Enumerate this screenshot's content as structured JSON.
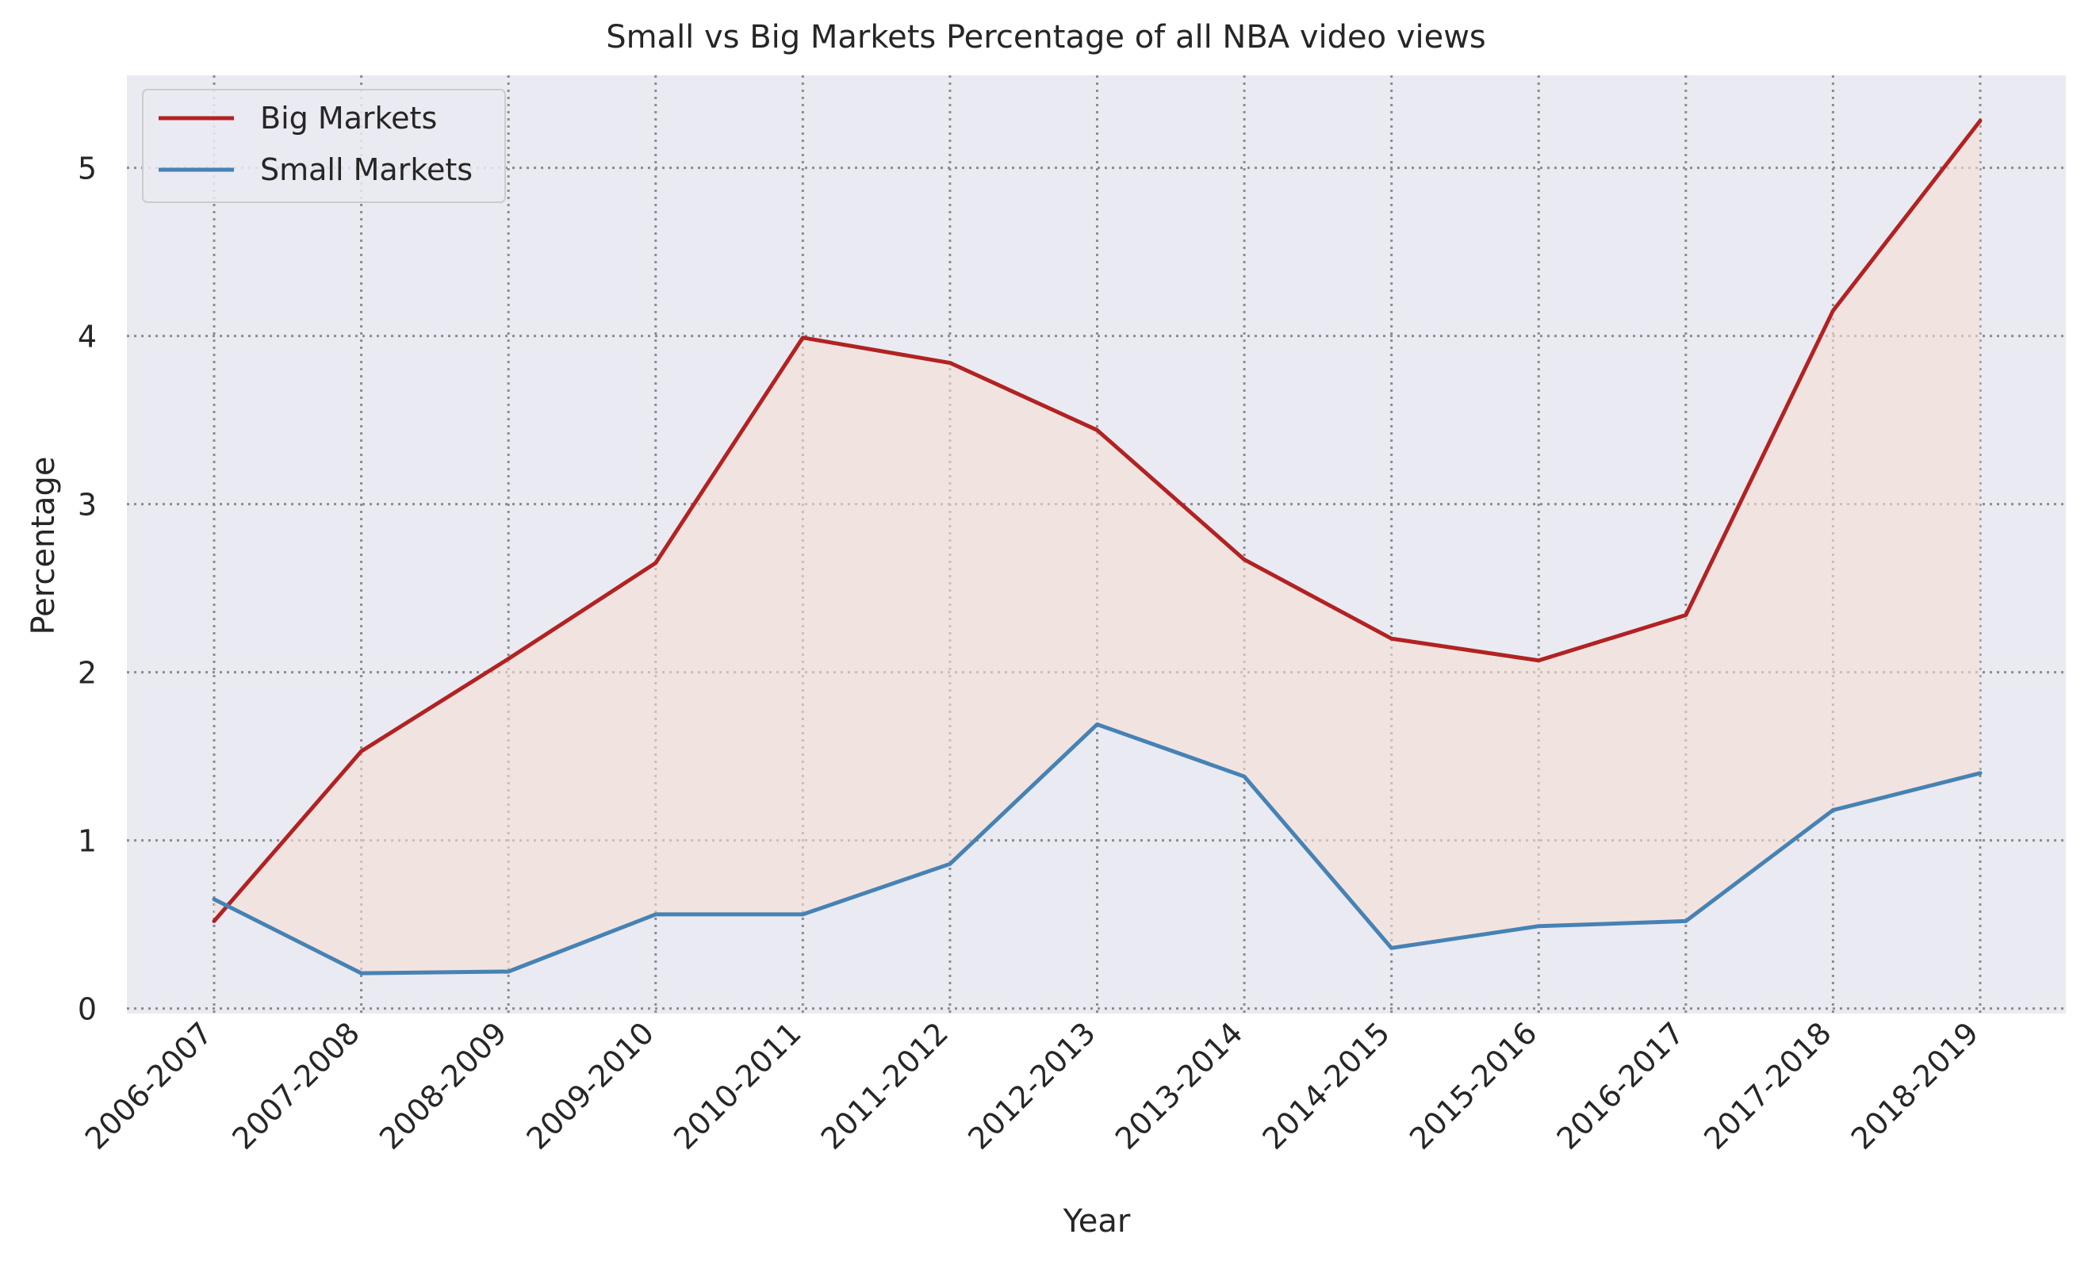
{
  "chart_data": {
    "type": "line",
    "title": "Small vs Big Markets Percentage of all NBA video views",
    "xlabel": "Year",
    "ylabel": "Percentage",
    "categories": [
      "2006-2007",
      "2007-2008",
      "2008-2009",
      "2009-2010",
      "2010-2011",
      "2011-2012",
      "2012-2013",
      "2013-2014",
      "2014-2015",
      "2015-2016",
      "2016-2017",
      "2017-2018",
      "2018-2019"
    ],
    "series": [
      {
        "name": "Big Markets",
        "color": "#b22222",
        "values": [
          0.52,
          1.53,
          2.08,
          2.65,
          3.99,
          3.84,
          3.44,
          2.67,
          2.2,
          2.07,
          2.34,
          4.15,
          5.28
        ]
      },
      {
        "name": "Small Markets",
        "color": "#4682b4",
        "values": [
          0.65,
          0.21,
          0.22,
          0.56,
          0.56,
          0.86,
          1.69,
          1.38,
          0.36,
          0.49,
          0.52,
          1.18,
          1.4
        ]
      }
    ],
    "fill_between_color": "#f5dfd3",
    "ylim": [
      -0.03,
      5.55
    ],
    "yticks": [
      0,
      1,
      2,
      3,
      4,
      5
    ],
    "grid": true,
    "legend_position": "top-left",
    "background_color": "#eaeaf2"
  }
}
